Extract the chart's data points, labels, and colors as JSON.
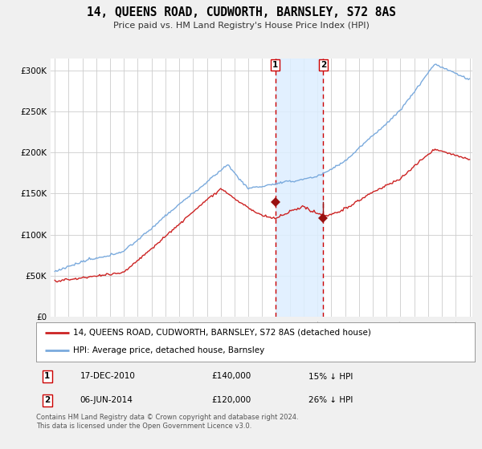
{
  "title": "14, QUEENS ROAD, CUDWORTH, BARNSLEY, S72 8AS",
  "subtitle": "Price paid vs. HM Land Registry's House Price Index (HPI)",
  "ylabel_ticks": [
    "£0",
    "£50K",
    "£100K",
    "£150K",
    "£200K",
    "£250K",
    "£300K"
  ],
  "ytick_values": [
    0,
    50000,
    100000,
    150000,
    200000,
    250000,
    300000
  ],
  "ylim": [
    0,
    315000
  ],
  "xlim_left": 1995.0,
  "xlim_right": 2025.2,
  "hpi_color": "#7aaadd",
  "price_color": "#cc2222",
  "marker_color": "#991111",
  "vline_color": "#cc0000",
  "shade_color": "#ddeeff",
  "transaction1_year": 2010.96,
  "transaction1_price": 140000,
  "transaction2_year": 2014.42,
  "transaction2_price": 120000,
  "legend_property": "14, QUEENS ROAD, CUDWORTH, BARNSLEY, S72 8AS (detached house)",
  "legend_hpi": "HPI: Average price, detached house, Barnsley",
  "footnote": "Contains HM Land Registry data © Crown copyright and database right 2024.\nThis data is licensed under the Open Government Licence v3.0.",
  "table_row1_date": "17-DEC-2010",
  "table_row1_price": "£140,000",
  "table_row1_pct": "15% ↓ HPI",
  "table_row2_date": "06-JUN-2014",
  "table_row2_price": "£120,000",
  "table_row2_pct": "26% ↓ HPI",
  "background_color": "#f0f0f0",
  "plot_bg_color": "#ffffff",
  "grid_color": "#cccccc"
}
